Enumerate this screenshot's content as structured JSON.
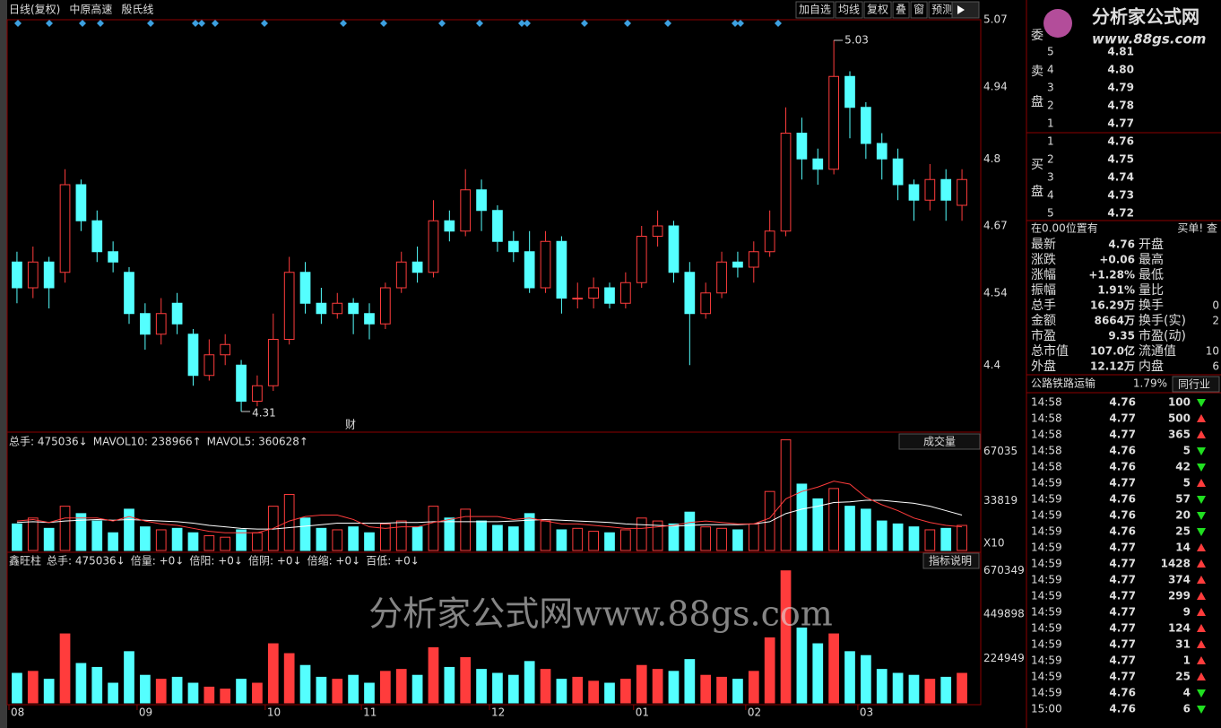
{
  "toolbar": {
    "left": [
      "日线(复权)",
      "中原高速",
      "殷氏线"
    ],
    "buttons": [
      "加自选",
      "均线",
      "复权",
      "叠",
      "窗",
      "预测"
    ]
  },
  "chart_data": [
    {
      "type": "candlestick",
      "up_color": "#ff3c3c",
      "down_color": "#54ffff",
      "event_label": "财",
      "categories": [
        "08",
        null,
        null,
        null,
        null,
        null,
        null,
        null,
        "09",
        null,
        null,
        null,
        null,
        null,
        null,
        null,
        "10",
        null,
        null,
        null,
        null,
        null,
        "11",
        null,
        null,
        null,
        null,
        null,
        null,
        null,
        "12",
        null,
        null,
        null,
        null,
        null,
        null,
        null,
        null,
        "01",
        null,
        null,
        null,
        null,
        null,
        null,
        "02",
        null,
        null,
        null,
        null,
        null,
        null,
        "03",
        null,
        null,
        null,
        null,
        null,
        null
      ],
      "open": [
        4.6,
        4.55,
        4.6,
        4.58,
        4.75,
        4.68,
        4.62,
        4.58,
        4.5,
        4.46,
        4.52,
        4.46,
        4.38,
        4.42,
        4.4,
        4.33,
        4.36,
        4.45,
        4.58,
        4.52,
        4.5,
        4.52,
        4.5,
        4.48,
        4.55,
        4.6,
        4.58,
        4.68,
        4.66,
        4.74,
        4.7,
        4.64,
        4.62,
        4.55,
        4.64,
        4.53,
        4.53,
        4.55,
        4.52,
        4.56,
        4.65,
        4.67,
        4.58,
        4.5,
        4.54,
        4.6,
        4.59,
        4.62,
        4.66,
        4.85,
        4.8,
        4.78,
        4.96,
        4.9,
        4.83,
        4.8,
        4.75,
        4.72,
        4.76,
        4.71
      ],
      "high": [
        4.62,
        4.63,
        4.61,
        4.78,
        4.76,
        4.7,
        4.64,
        4.59,
        4.52,
        4.53,
        4.54,
        4.47,
        4.45,
        4.46,
        4.41,
        4.38,
        4.5,
        4.61,
        4.6,
        4.55,
        4.54,
        4.53,
        4.52,
        4.56,
        4.62,
        4.63,
        4.72,
        4.7,
        4.78,
        4.76,
        4.71,
        4.66,
        4.66,
        4.66,
        4.65,
        4.56,
        4.57,
        4.56,
        4.58,
        4.67,
        4.7,
        4.68,
        4.6,
        4.56,
        4.62,
        4.62,
        4.64,
        4.7,
        4.9,
        4.88,
        4.82,
        5.03,
        4.97,
        4.91,
        4.85,
        4.82,
        4.76,
        4.79,
        4.78,
        4.78
      ],
      "low": [
        4.52,
        4.53,
        4.51,
        4.56,
        4.66,
        4.6,
        4.58,
        4.48,
        4.43,
        4.44,
        4.46,
        4.36,
        4.37,
        4.4,
        4.31,
        4.32,
        4.35,
        4.44,
        4.5,
        4.48,
        4.49,
        4.46,
        4.45,
        4.47,
        4.54,
        4.56,
        4.57,
        4.64,
        4.65,
        4.66,
        4.62,
        4.6,
        4.54,
        4.54,
        4.5,
        4.51,
        4.51,
        4.51,
        4.51,
        4.55,
        4.63,
        4.56,
        4.4,
        4.49,
        4.53,
        4.57,
        4.56,
        4.61,
        4.65,
        4.76,
        4.75,
        4.77,
        4.84,
        4.8,
        4.76,
        4.72,
        4.68,
        4.7,
        4.68,
        4.68
      ],
      "close": [
        4.55,
        4.6,
        4.55,
        4.75,
        4.68,
        4.62,
        4.6,
        4.5,
        4.46,
        4.5,
        4.48,
        4.38,
        4.42,
        4.44,
        4.33,
        4.36,
        4.45,
        4.58,
        4.52,
        4.5,
        4.52,
        4.5,
        4.48,
        4.55,
        4.6,
        4.58,
        4.68,
        4.66,
        4.74,
        4.7,
        4.64,
        4.62,
        4.55,
        4.64,
        4.53,
        4.53,
        4.55,
        4.52,
        4.56,
        4.65,
        4.67,
        4.58,
        4.5,
        4.54,
        4.6,
        4.59,
        4.62,
        4.66,
        4.85,
        4.8,
        4.78,
        4.96,
        4.9,
        4.83,
        4.8,
        4.75,
        4.72,
        4.76,
        4.72,
        4.76
      ],
      "ylim": [
        4.27,
        5.07
      ],
      "yticks": [
        4.4,
        4.54,
        4.67,
        4.8,
        4.94,
        5.07
      ]
    },
    {
      "type": "bar",
      "dropdown": "成交量",
      "scale_label": "X10",
      "header": [
        {
          "text": "总手: 475036↓",
          "color": "#ff5050"
        },
        {
          "text": "MAVOL10: 238966↑",
          "color": "#ffffff"
        },
        {
          "text": "MAVOL5: 360628↑",
          "color": "#ff5050"
        }
      ],
      "values": [
        18000,
        22000,
        15000,
        30000,
        25000,
        20000,
        12000,
        28000,
        16000,
        14000,
        15000,
        12000,
        10000,
        9000,
        14000,
        12000,
        30000,
        38000,
        22000,
        15000,
        14000,
        16000,
        12000,
        18000,
        20000,
        16000,
        30000,
        22000,
        28000,
        20000,
        17000,
        16000,
        25000,
        20000,
        14000,
        15000,
        13000,
        12000,
        14000,
        22000,
        20000,
        18000,
        26000,
        16000,
        15000,
        14000,
        18000,
        40000,
        75000,
        45000,
        35000,
        42000,
        30000,
        28000,
        20000,
        18000,
        16000,
        14000,
        15000,
        17000
      ],
      "lines": [
        {
          "color": "#ffffff",
          "values": [
            19000,
            19500,
            19000,
            20000,
            20500,
            21000,
            20500,
            21000,
            20500,
            20000,
            19500,
            18500,
            17000,
            16000,
            15000,
            14500,
            14500,
            15500,
            16500,
            17500,
            18500,
            18500,
            18500,
            18500,
            19000,
            19000,
            19500,
            19500,
            19500,
            19500,
            19500,
            20000,
            20500,
            21000,
            20500,
            20000,
            19500,
            19000,
            18000,
            17500,
            17000,
            16500,
            17000,
            17500,
            17500,
            17500,
            18000,
            19500,
            25000,
            28000,
            30000,
            32500,
            33000,
            34000,
            34000,
            33000,
            32000,
            30000,
            27000,
            24000
          ]
        },
        {
          "color": "#ff3c3c",
          "values": [
            20000,
            21000,
            19000,
            22000,
            22000,
            22000,
            20000,
            23000,
            20000,
            18000,
            17000,
            15000,
            13000,
            12000,
            12000,
            12000,
            15000,
            20000,
            23000,
            24000,
            24000,
            21000,
            16000,
            15000,
            16000,
            16000,
            19000,
            21000,
            23000,
            23000,
            23000,
            21000,
            22000,
            20000,
            18000,
            18000,
            17000,
            16000,
            15000,
            15000,
            16000,
            17000,
            19000,
            20000,
            19000,
            18000,
            18000,
            22000,
            35000,
            40000,
            43000,
            47000,
            45000,
            36000,
            31000,
            27000,
            22000,
            19000,
            17000,
            16000
          ]
        }
      ],
      "ylim": [
        0,
        79000
      ],
      "yticks": [
        33819,
        67035
      ]
    },
    {
      "type": "bar",
      "button": "指标说明",
      "header": [
        {
          "text": "鑫旺柱",
          "color": "#ffffff"
        },
        {
          "text": "总手: 475036↓",
          "color": "#ffffff"
        },
        {
          "text": "倍量: +0↓",
          "color": "#ffff00"
        },
        {
          "text": "倍阳: +0↓",
          "color": "#20c020"
        },
        {
          "text": "倍阴: +0↓",
          "color": "#5070ff"
        },
        {
          "text": "倍缩: +0↓",
          "color": "#ff40ff"
        },
        {
          "text": "百低: +0↓",
          "color": "#ffffff"
        }
      ],
      "values": [
        150000,
        160000,
        120000,
        350000,
        200000,
        180000,
        100000,
        260000,
        140000,
        120000,
        130000,
        100000,
        80000,
        70000,
        120000,
        100000,
        300000,
        250000,
        190000,
        130000,
        120000,
        140000,
        100000,
        160000,
        170000,
        140000,
        280000,
        180000,
        230000,
        170000,
        150000,
        140000,
        210000,
        170000,
        120000,
        130000,
        110000,
        100000,
        120000,
        190000,
        170000,
        160000,
        220000,
        140000,
        130000,
        120000,
        160000,
        330000,
        670000,
        380000,
        300000,
        350000,
        260000,
        240000,
        170000,
        150000,
        140000,
        120000,
        130000,
        150000
      ],
      "ylim": [
        0,
        755000
      ],
      "yticks": [
        224949,
        449898,
        670349
      ]
    }
  ],
  "watermark": "分析家公式网www.88gs.com",
  "side_panel": {
    "logo": "分析家公式网",
    "logo_url": "www.88gs.com",
    "committee": "委",
    "sell_label": [
      "卖",
      "盘"
    ],
    "buy_label": [
      "买",
      "盘"
    ],
    "sell": [
      {
        "level": "5",
        "price": "4.81"
      },
      {
        "level": "4",
        "price": "4.80"
      },
      {
        "level": "3",
        "price": "4.79"
      },
      {
        "level": "2",
        "price": "4.78"
      },
      {
        "level": "1",
        "price": "4.77"
      }
    ],
    "buy": [
      {
        "level": "1",
        "price": "4.76"
      },
      {
        "level": "2",
        "price": "4.75"
      },
      {
        "level": "3",
        "price": "4.74"
      },
      {
        "level": "4",
        "price": "4.73"
      },
      {
        "level": "5",
        "price": "4.72"
      }
    ],
    "position": "在0.00位置有",
    "order_button": "买单! 查",
    "stats": [
      {
        "label": "最新",
        "value": "4.76",
        "color": "#ff3c3c",
        "label2": "开盘"
      },
      {
        "label": "涨跌",
        "value": "+0.06",
        "color": "#ff3c3c",
        "label2": "最高"
      },
      {
        "label": "涨幅",
        "value": "+1.28%",
        "color": "#ff3c3c",
        "label2": "最低"
      },
      {
        "label": "振幅",
        "value": "1.91%",
        "color": "#54ffff",
        "label2": "量比"
      },
      {
        "label": "总手",
        "value": "16.29万",
        "color": "#54ffff",
        "label2": "换手",
        "value2": "0"
      },
      {
        "label": "金额",
        "value": "8664万",
        "color": "#54ffff",
        "label2": "换手(实)",
        "value2": "2"
      },
      {
        "label": "市盈",
        "value": "9.35",
        "color": "#dddddd",
        "label2": "市盈(动)"
      },
      {
        "label": "总市值",
        "value": "107.0亿",
        "color": "#54ffff",
        "label2": "流通值",
        "value2": "10"
      },
      {
        "label": "外盘",
        "value": "12.12万",
        "color": "#ff3c3c",
        "label2": "内盘",
        "value2": "6"
      }
    ],
    "industry": "公路铁路运输",
    "industry_change": "1.79%",
    "industry_button": "同行业",
    "trades": [
      {
        "time": "14:58",
        "price": "4.76",
        "volume": "100",
        "dir": "down"
      },
      {
        "time": "14:58",
        "price": "4.77",
        "volume": "500",
        "dir": "up"
      },
      {
        "time": "14:58",
        "price": "4.77",
        "volume": "365",
        "dir": "up"
      },
      {
        "time": "14:58",
        "price": "4.76",
        "volume": "5",
        "dir": "down"
      },
      {
        "time": "14:58",
        "price": "4.76",
        "volume": "42",
        "dir": "down"
      },
      {
        "time": "14:59",
        "price": "4.77",
        "volume": "5",
        "dir": "up"
      },
      {
        "time": "14:59",
        "price": "4.76",
        "volume": "57",
        "dir": "down"
      },
      {
        "time": "14:59",
        "price": "4.76",
        "volume": "20",
        "dir": "down"
      },
      {
        "time": "14:59",
        "price": "4.76",
        "volume": "25",
        "dir": "down"
      },
      {
        "time": "14:59",
        "price": "4.77",
        "volume": "14",
        "dir": "up"
      },
      {
        "time": "14:59",
        "price": "4.77",
        "volume": "1428",
        "dir": "up"
      },
      {
        "time": "14:59",
        "price": "4.77",
        "volume": "374",
        "dir": "up"
      },
      {
        "time": "14:59",
        "price": "4.77",
        "volume": "299",
        "dir": "up"
      },
      {
        "time": "14:59",
        "price": "4.77",
        "volume": "9",
        "dir": "up"
      },
      {
        "time": "14:59",
        "price": "4.77",
        "volume": "124",
        "dir": "up"
      },
      {
        "time": "14:59",
        "price": "4.77",
        "volume": "31",
        "dir": "up"
      },
      {
        "time": "14:59",
        "price": "4.77",
        "volume": "1",
        "dir": "up"
      },
      {
        "time": "14:59",
        "price": "4.77",
        "volume": "25",
        "dir": "up"
      },
      {
        "time": "14:59",
        "price": "4.76",
        "volume": "4",
        "dir": "down"
      },
      {
        "time": "15:00",
        "price": "4.76",
        "volume": "6",
        "dir": "down"
      }
    ]
  }
}
